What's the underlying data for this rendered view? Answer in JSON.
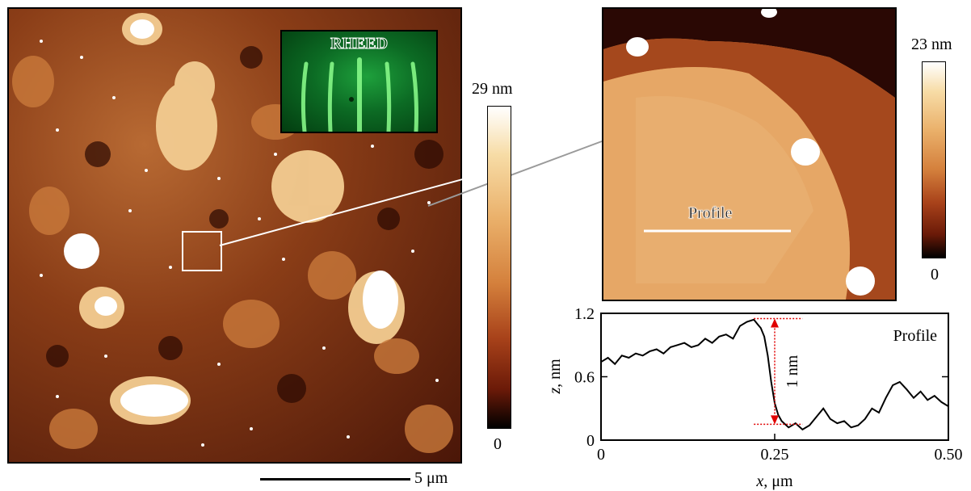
{
  "afm_main": {
    "colorbar_max": "29 nm",
    "colorbar_min": "0"
  },
  "rheed_inset": {
    "title": "RHEED"
  },
  "scale_bar": {
    "label": "5 μm"
  },
  "afm_zoom": {
    "colorbar_max": "23 nm",
    "colorbar_min": "0",
    "profile_label": "Profile"
  },
  "chart_data": {
    "type": "line",
    "title": "Profile",
    "xlabel": "x, μm",
    "ylabel": "z, nm",
    "xlim": [
      0,
      0.5
    ],
    "ylim": [
      0,
      1.2
    ],
    "xticks": [
      "0",
      "0.25",
      "0.50"
    ],
    "yticks": [
      "0",
      "0.6",
      "1.2"
    ],
    "annotation": "1 nm",
    "series": [
      {
        "x": [
          0,
          0.01,
          0.02,
          0.03,
          0.04,
          0.05,
          0.06,
          0.07,
          0.08,
          0.09,
          0.1,
          0.11,
          0.12,
          0.13,
          0.14,
          0.15,
          0.16,
          0.17,
          0.18,
          0.19,
          0.2,
          0.21,
          0.22,
          0.225,
          0.23,
          0.235,
          0.24,
          0.245,
          0.25,
          0.255,
          0.26,
          0.27,
          0.28,
          0.29,
          0.3,
          0.31,
          0.32,
          0.33,
          0.34,
          0.35,
          0.36,
          0.37,
          0.38,
          0.39,
          0.4,
          0.41,
          0.42,
          0.43,
          0.44,
          0.45,
          0.46,
          0.47,
          0.48,
          0.49,
          0.5
        ],
        "y": [
          0.74,
          0.78,
          0.72,
          0.8,
          0.78,
          0.82,
          0.8,
          0.84,
          0.86,
          0.82,
          0.88,
          0.9,
          0.92,
          0.88,
          0.9,
          0.96,
          0.92,
          0.98,
          1.0,
          0.96,
          1.08,
          1.12,
          1.14,
          1.1,
          1.06,
          0.98,
          0.8,
          0.55,
          0.35,
          0.24,
          0.18,
          0.12,
          0.16,
          0.1,
          0.14,
          0.22,
          0.3,
          0.2,
          0.16,
          0.18,
          0.12,
          0.14,
          0.2,
          0.3,
          0.26,
          0.4,
          0.52,
          0.55,
          0.48,
          0.4,
          0.46,
          0.38,
          0.42,
          0.36,
          0.32
        ]
      }
    ]
  }
}
